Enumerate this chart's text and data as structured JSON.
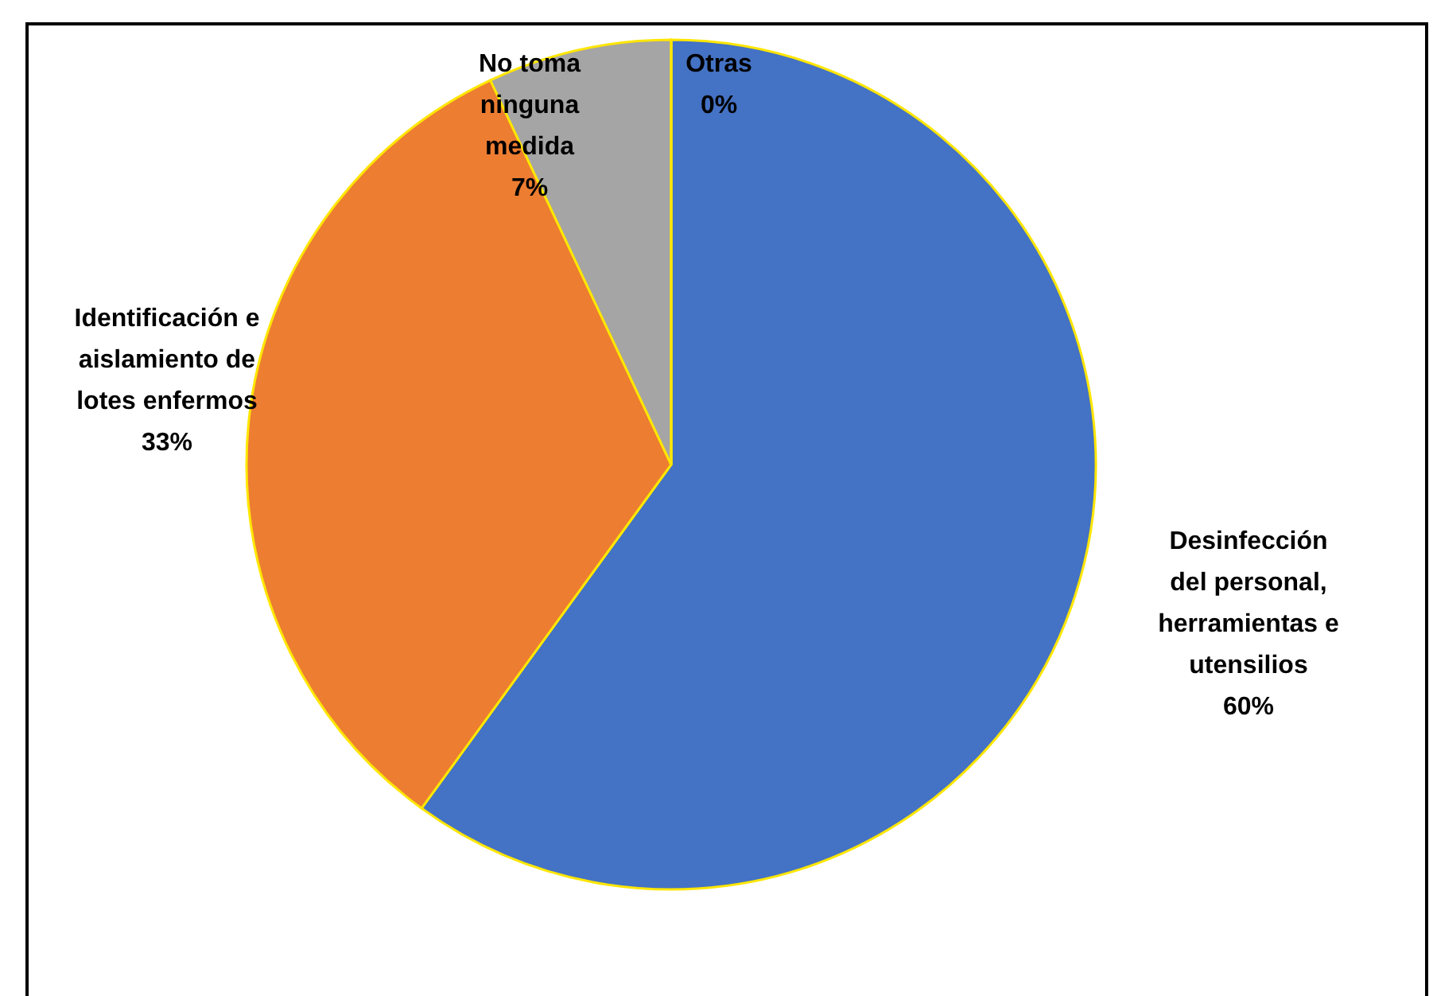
{
  "chart_data": {
    "type": "pie",
    "categories": [
      "Desinfección del personal, herramientas e utensilios",
      "Identificación e aislamiento de lotes enfermos",
      "No toma ninguna medida",
      "Otras"
    ],
    "values": [
      60,
      33,
      7,
      0
    ],
    "colors": [
      "#4472c4",
      "#ed7d31",
      "#a5a5a5",
      "#ffc000"
    ],
    "value_labels": [
      "60%",
      "33%",
      "7%",
      "0%"
    ]
  }
}
